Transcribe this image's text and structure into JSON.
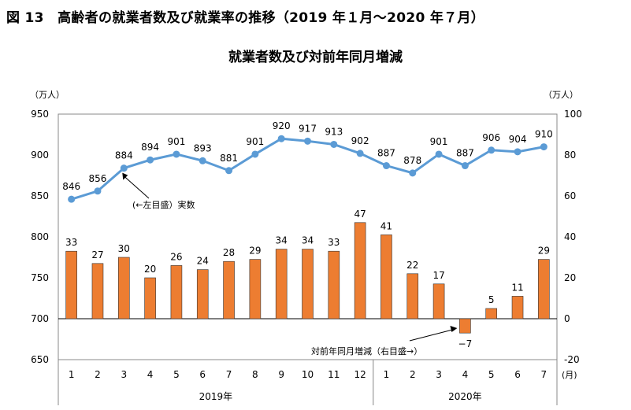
{
  "figure": {
    "title": "図 13　高齢者の就業者数及び就業率の推移（2019 年１月～2020 年７月）"
  },
  "chart_data": {
    "type": "bar+line",
    "title": "就業者数及び対前年同月増減",
    "categories": [
      "1",
      "2",
      "3",
      "4",
      "5",
      "6",
      "7",
      "8",
      "9",
      "10",
      "11",
      "12",
      "1",
      "2",
      "3",
      "4",
      "5",
      "6",
      "7"
    ],
    "x_unit": "(月)",
    "year_groups": [
      {
        "label": "2019年",
        "count": 12
      },
      {
        "label": "2020年",
        "count": 7
      }
    ],
    "left_axis": {
      "unit": "（万人）",
      "min": 650,
      "max": 950,
      "ticks": [
        650,
        700,
        750,
        800,
        850,
        900,
        950
      ]
    },
    "right_axis": {
      "unit": "（万人）",
      "min": -20,
      "max": 100,
      "ticks": [
        -20,
        0,
        20,
        40,
        60,
        80,
        100
      ]
    },
    "series": [
      {
        "name": "就業者数",
        "annotation": "(←左目盛）実数",
        "type": "line",
        "axis": "left",
        "color": "#5b9bd5",
        "values": [
          846,
          856,
          884,
          894,
          901,
          893,
          881,
          901,
          920,
          917,
          913,
          902,
          887,
          878,
          901,
          887,
          906,
          904,
          910
        ],
        "labels": [
          "846",
          "856",
          "884",
          "894",
          "901",
          "893",
          "881",
          "901",
          "920",
          "917",
          "913",
          "902",
          "887",
          "878",
          "901",
          "887",
          "906",
          "904",
          "910"
        ]
      },
      {
        "name": "対前年同月増減",
        "annotation": "対前年同月増減（右目盛→）",
        "type": "bar",
        "axis": "right",
        "color": "#ed7d31",
        "values": [
          33,
          27,
          30,
          20,
          26,
          24,
          28,
          29,
          34,
          34,
          33,
          47,
          41,
          22,
          17,
          -7,
          5,
          11,
          29
        ],
        "labels": [
          "33",
          "27",
          "30",
          "20",
          "26",
          "24",
          "28",
          "29",
          "34",
          "34",
          "33",
          "47",
          "41",
          "22",
          "17",
          "−7",
          "5",
          "11",
          "29"
        ]
      }
    ]
  }
}
